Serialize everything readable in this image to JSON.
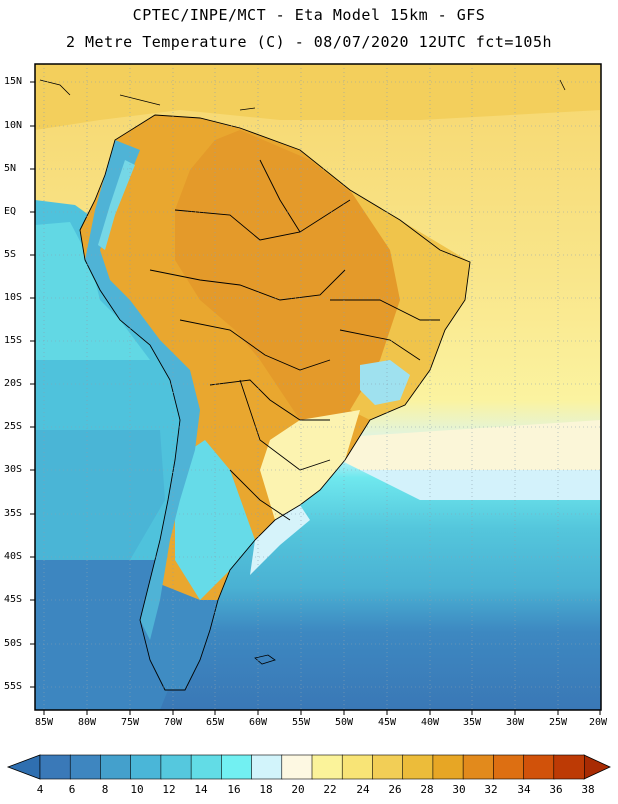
{
  "header": {
    "line1": "CPTEC/INPE/MCT -  Eta Model 15km - GFS",
    "line2": "2 Metre Temperature (C) - 08/07/2020 12UTC fct=105h"
  },
  "map": {
    "lat_labels": [
      "15N",
      "10N",
      "5N",
      "EQ",
      "5S",
      "10S",
      "15S",
      "20S",
      "25S",
      "30S",
      "35S",
      "40S",
      "45S",
      "50S",
      "55S"
    ],
    "lon_labels": [
      "85W",
      "80W",
      "75W",
      "70W",
      "65W",
      "60W",
      "55W",
      "50W",
      "45W",
      "40W",
      "35W",
      "30W",
      "25W",
      "20W"
    ]
  },
  "colorbar": {
    "labels": [
      "4",
      "6",
      "8",
      "10",
      "12",
      "14",
      "16",
      "18",
      "20",
      "22",
      "24",
      "26",
      "28",
      "30",
      "32",
      "34",
      "36",
      "38"
    ],
    "colors": [
      "#3a79b8",
      "#3e86c0",
      "#44a0cc",
      "#4ab6d8",
      "#55c8de",
      "#62dce6",
      "#72f0f2",
      "#d2f4fb",
      "#fdf8e2",
      "#fbf39a",
      "#f8e476",
      "#f2ce56",
      "#ecbc3a",
      "#e7a625",
      "#e28a1c",
      "#dd6f12",
      "#d1520a",
      "#bd3a05"
    ]
  }
}
